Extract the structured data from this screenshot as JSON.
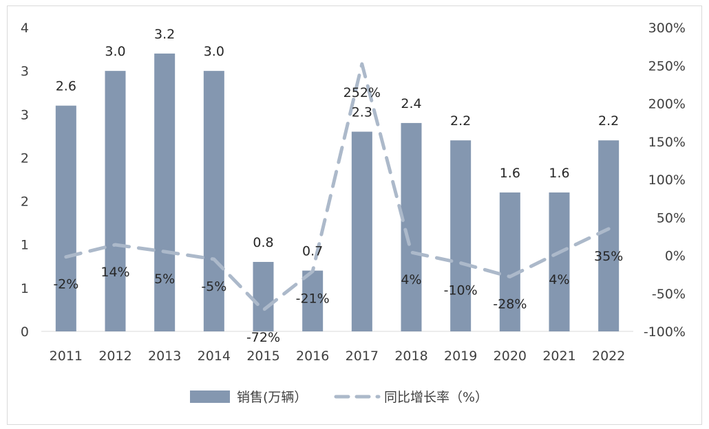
{
  "chart_data": {
    "type": "bar",
    "title": "",
    "categories": [
      "2011",
      "2012",
      "2013",
      "2014",
      "2015",
      "2016",
      "2017",
      "2018",
      "2019",
      "2020",
      "2021",
      "2022"
    ],
    "series": [
      {
        "name": "销售(万辆）",
        "type": "bar",
        "axis": "left",
        "values": [
          2.6,
          3.0,
          3.2,
          3.0,
          0.8,
          0.7,
          2.3,
          2.4,
          2.2,
          1.6,
          1.6,
          2.2
        ],
        "labels": [
          "2.6",
          "3.0",
          "3.2",
          "3.0",
          "0.8",
          "0.7",
          "2.3",
          "2.4",
          "2.2",
          "1.6",
          "1.6",
          "2.2"
        ],
        "color": "#8497b0"
      },
      {
        "name": "同比增长率（%）",
        "type": "line",
        "style": "dashed",
        "axis": "right",
        "values": [
          -2,
          14,
          5,
          -5,
          -72,
          -21,
          252,
          4,
          -10,
          -28,
          4,
          35
        ],
        "labels": [
          "-2%",
          "14%",
          "5%",
          "-5%",
          "-72%",
          "-21%",
          "252%",
          "4%",
          "-10%",
          "-28%",
          "4%",
          "35%"
        ],
        "color": "#acb9ca"
      }
    ],
    "left_axis": {
      "ylim": [
        0,
        3.5
      ],
      "tick_labels": [
        "0",
        "1",
        "1",
        "2",
        "2",
        "3",
        "3",
        "4"
      ]
    },
    "right_axis": {
      "ylim": [
        -100,
        300
      ],
      "tick_labels": [
        "-100%",
        "-50%",
        "0%",
        "50%",
        "100%",
        "150%",
        "200%",
        "250%",
        "300%"
      ]
    },
    "grid": false,
    "legend_position": "bottom"
  }
}
